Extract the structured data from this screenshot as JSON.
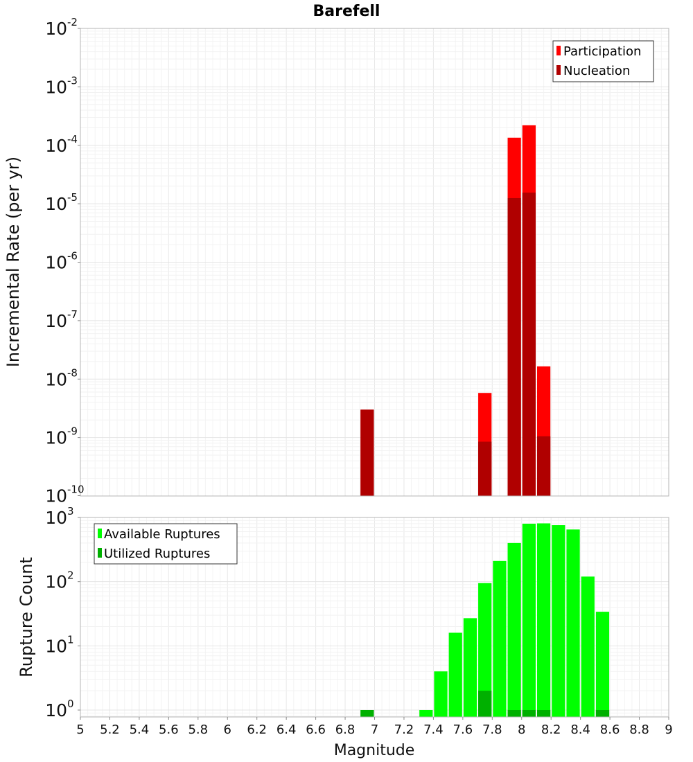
{
  "chart_data": [
    {
      "type": "bar",
      "title": "Barefell",
      "xlabel": "",
      "ylabel": "Incremental Rate (per yr)",
      "y_scale": "log",
      "ylim": [
        1e-10,
        0.01
      ],
      "xlim": [
        5,
        9
      ],
      "y_ticks": [
        {
          "base": "10",
          "exp": "-10"
        },
        {
          "base": "10",
          "exp": "-9"
        },
        {
          "base": "10",
          "exp": "-8"
        },
        {
          "base": "10",
          "exp": "-7"
        },
        {
          "base": "10",
          "exp": "-6"
        },
        {
          "base": "10",
          "exp": "-5"
        },
        {
          "base": "10",
          "exp": "-4"
        },
        {
          "base": "10",
          "exp": "-3"
        },
        {
          "base": "10",
          "exp": "-2"
        }
      ],
      "grid": true,
      "legend_position": "top-right",
      "legend": [
        "Participation",
        "Nucleation"
      ],
      "series": [
        {
          "name": "Participation",
          "color": "#ff0000",
          "x": [
            6.95,
            7.75,
            7.95,
            8.05,
            8.15
          ],
          "values": [
            3e-09,
            5.8e-09,
            0.000135,
            0.00022,
            1.65e-08
          ]
        },
        {
          "name": "Nucleation",
          "color": "#b00000",
          "x": [
            6.95,
            7.75,
            7.95,
            8.05,
            8.15
          ],
          "values": [
            3e-09,
            8.5e-10,
            1.25e-05,
            1.55e-05,
            1.05e-09
          ]
        }
      ]
    },
    {
      "type": "bar",
      "xlabel": "Magnitude",
      "ylabel": "Rupture Count",
      "y_scale": "log",
      "ylim": [
        0.78,
        1000
      ],
      "xlim": [
        5,
        9
      ],
      "x_ticks": [
        "5",
        "5.2",
        "5.4",
        "5.6",
        "5.8",
        "6",
        "6.2",
        "6.4",
        "6.6",
        "6.8",
        "7",
        "7.2",
        "7.4",
        "7.6",
        "7.8",
        "8",
        "8.2",
        "8.4",
        "8.6",
        "8.8",
        "9"
      ],
      "y_ticks": [
        {
          "base": "10",
          "exp": "0"
        },
        {
          "base": "10",
          "exp": "1"
        },
        {
          "base": "10",
          "exp": "2"
        },
        {
          "base": "10",
          "exp": "3"
        }
      ],
      "grid": true,
      "legend_position": "top-left",
      "legend": [
        "Available Ruptures",
        "Utilized Ruptures"
      ],
      "series": [
        {
          "name": "Available Ruptures",
          "color": "#00ff00",
          "x": [
            6.95,
            7.35,
            7.45,
            7.55,
            7.65,
            7.75,
            7.85,
            7.95,
            8.05,
            8.15,
            8.25,
            8.35,
            8.45,
            8.55
          ],
          "values": [
            1,
            1,
            4,
            16,
            27,
            95,
            210,
            400,
            800,
            810,
            760,
            650,
            120,
            34
          ]
        },
        {
          "name": "Utilized Ruptures",
          "color": "#00b000",
          "x": [
            6.95,
            7.75,
            7.95,
            8.05,
            8.15,
            8.55
          ],
          "values": [
            1,
            2,
            1,
            1,
            1,
            1
          ]
        }
      ]
    }
  ]
}
